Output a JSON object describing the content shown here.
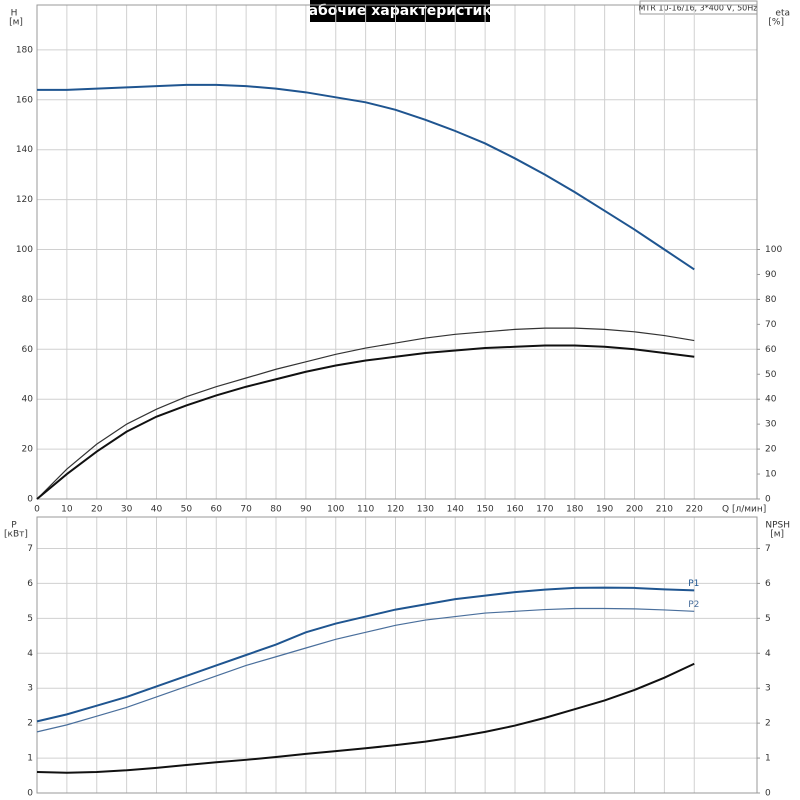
{
  "chart_data": [
    {
      "type": "line",
      "title": "Рабочие характеристики",
      "model": "MTR 10-16/16, 3*400 V, 50Hz",
      "xlabel": "Q [л/мин]",
      "ylabel": "H",
      "yunit": "[м]",
      "y2label": "eta",
      "y2unit": "[%]",
      "xlim": [
        0,
        241
      ],
      "xticks": [
        0,
        10,
        20,
        30,
        40,
        50,
        60,
        70,
        80,
        90,
        100,
        110,
        120,
        130,
        140,
        150,
        160,
        170,
        180,
        190,
        200,
        210,
        220
      ],
      "xtick_labels": true,
      "ylim": [
        0,
        198
      ],
      "yticks": [
        0,
        20,
        40,
        60,
        80,
        100,
        120,
        140,
        160,
        180
      ],
      "y2lim": [
        0,
        198
      ],
      "y2ticks": [
        0,
        10,
        20,
        30,
        40,
        50,
        60,
        70,
        80,
        90,
        100
      ],
      "grid": true,
      "x": [
        0,
        10,
        20,
        30,
        40,
        50,
        60,
        70,
        80,
        90,
        100,
        110,
        120,
        130,
        140,
        150,
        160,
        170,
        180,
        190,
        200,
        210,
        220
      ],
      "series": [
        {
          "color": "#1f5590",
          "width": 2,
          "values": [
            164,
            164,
            164.5,
            165,
            165.5,
            166,
            166,
            165.5,
            164.5,
            163,
            161,
            159,
            156,
            152,
            147.5,
            142.5,
            136.5,
            130,
            123,
            115.5,
            108,
            100,
            92
          ]
        },
        {
          "color": "#333333",
          "width": 1.2,
          "axis": "y2",
          "values": [
            0,
            12,
            22,
            30,
            36,
            41,
            45,
            48.5,
            52,
            55,
            58,
            60.5,
            62.5,
            64.5,
            66,
            67,
            68,
            68.5,
            68.5,
            68,
            67,
            65.5,
            63.5
          ]
        },
        {
          "color": "#111111",
          "width": 2,
          "axis": "y2",
          "values": [
            0,
            10,
            19,
            27,
            33,
            37.5,
            41.5,
            45,
            48,
            51,
            53.5,
            55.5,
            57,
            58.5,
            59.5,
            60.5,
            61,
            61.5,
            61.5,
            61,
            60,
            58.5,
            57
          ]
        }
      ]
    },
    {
      "type": "line",
      "ylabel": "P",
      "yunit": "[кВт]",
      "y2label": "NPSH",
      "y2unit": "[м]",
      "xlim": [
        0,
        241
      ],
      "xticks": [
        0,
        10,
        20,
        30,
        40,
        50,
        60,
        70,
        80,
        90,
        100,
        110,
        120,
        130,
        140,
        150,
        160,
        170,
        180,
        190,
        200,
        210,
        220
      ],
      "xtick_labels": false,
      "ylim": [
        0,
        7.9
      ],
      "yticks": [
        0,
        1,
        2,
        3,
        4,
        5,
        6,
        7
      ],
      "y2lim": [
        0,
        7.9
      ],
      "y2ticks": [
        0,
        1,
        2,
        3,
        4,
        5,
        6,
        7
      ],
      "grid": true,
      "x": [
        0,
        10,
        20,
        30,
        40,
        50,
        60,
        70,
        80,
        90,
        100,
        110,
        120,
        130,
        140,
        150,
        160,
        170,
        180,
        190,
        200,
        210,
        220
      ],
      "series": [
        {
          "name": "P1",
          "color": "#1f5590",
          "width": 2,
          "values": [
            2.05,
            2.25,
            2.5,
            2.75,
            3.05,
            3.35,
            3.65,
            3.95,
            4.25,
            4.6,
            4.85,
            5.05,
            5.25,
            5.4,
            5.55,
            5.65,
            5.75,
            5.82,
            5.87,
            5.88,
            5.87,
            5.83,
            5.8
          ]
        },
        {
          "name": "P2",
          "color": "#4a6f9c",
          "width": 1.2,
          "values": [
            1.75,
            1.95,
            2.2,
            2.45,
            2.75,
            3.05,
            3.35,
            3.65,
            3.9,
            4.15,
            4.4,
            4.6,
            4.8,
            4.95,
            5.05,
            5.15,
            5.2,
            5.25,
            5.28,
            5.28,
            5.27,
            5.24,
            5.2
          ]
        },
        {
          "color": "#111111",
          "width": 2,
          "axis": "y2",
          "values": [
            0.6,
            0.58,
            0.6,
            0.65,
            0.72,
            0.8,
            0.88,
            0.95,
            1.03,
            1.12,
            1.2,
            1.28,
            1.37,
            1.47,
            1.6,
            1.75,
            1.93,
            2.15,
            2.4,
            2.65,
            2.95,
            3.3,
            3.7
          ]
        }
      ]
    }
  ]
}
